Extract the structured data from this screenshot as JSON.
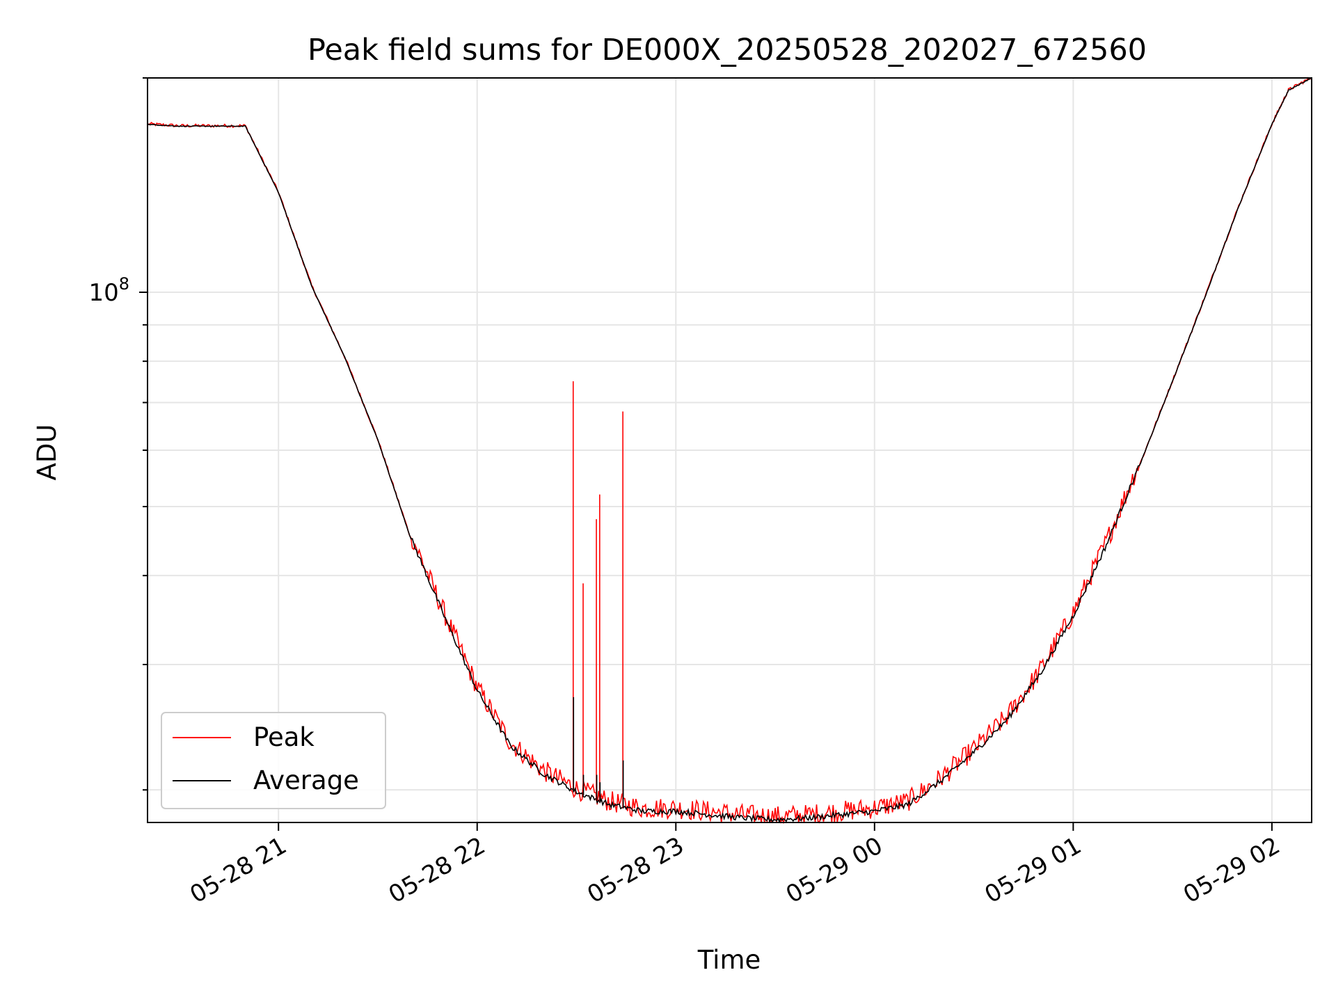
{
  "chart_data": {
    "type": "line",
    "title": "Peak field sums for DE000X_20250528_202027_672560",
    "xlabel": "Time",
    "ylabel": "ADU",
    "xlim": [
      "2025-05-28 20:20:27",
      "2025-05-29 02:12:00"
    ],
    "ylim": [
      18000000,
      200000000
    ],
    "yscale": "log",
    "grid": true,
    "legend_position": "lower-left",
    "x_ticks": [
      {
        "value": "2025-05-28 21:00",
        "label": "05-28 21"
      },
      {
        "value": "2025-05-28 22:00",
        "label": "05-28 22"
      },
      {
        "value": "2025-05-28 23:00",
        "label": "05-28 23"
      },
      {
        "value": "2025-05-29 00:00",
        "label": "05-29 00"
      },
      {
        "value": "2025-05-29 01:00",
        "label": "05-29 01"
      },
      {
        "value": "2025-05-29 02:00",
        "label": "05-29 02"
      }
    ],
    "y_major_tick": {
      "value": 100000000,
      "label_base": "10",
      "label_exp": "8"
    },
    "y_minor_ticks": [
      20000000,
      30000000,
      40000000,
      50000000,
      60000000,
      70000000,
      80000000,
      90000000,
      200000000
    ],
    "series": [
      {
        "name": "Peak",
        "color": "#ff0000",
        "x": [
          "2025-05-28 20:20:27",
          "2025-05-28 20:30",
          "2025-05-28 20:40",
          "2025-05-28 20:50",
          "2025-05-28 21:00",
          "2025-05-28 21:10",
          "2025-05-28 21:20",
          "2025-05-28 21:30",
          "2025-05-28 21:40",
          "2025-05-28 21:50",
          "2025-05-28 22:00",
          "2025-05-28 22:10",
          "2025-05-28 22:20",
          "2025-05-28 22:30",
          "2025-05-28 22:40",
          "2025-05-28 22:50",
          "2025-05-28 23:00",
          "2025-05-28 23:10",
          "2025-05-28 23:20",
          "2025-05-28 23:30",
          "2025-05-28 23:40",
          "2025-05-28 23:50",
          "2025-05-29 00:00",
          "2025-05-29 00:10",
          "2025-05-29 00:20",
          "2025-05-29 00:30",
          "2025-05-29 00:40",
          "2025-05-29 00:50",
          "2025-05-29 01:00",
          "2025-05-29 01:10",
          "2025-05-29 01:20",
          "2025-05-29 01:30",
          "2025-05-29 01:40",
          "2025-05-29 01:50",
          "2025-05-29 02:00",
          "2025-05-29 02:05",
          "2025-05-29 02:12"
        ],
        "values": [
          172000000,
          171000000,
          171000000,
          171000000,
          138000000,
          102000000,
          81000000,
          62000000,
          45000000,
          35000000,
          27500000,
          23000000,
          21000000,
          19800000,
          19000000,
          18600000,
          18600000,
          18400000,
          18200000,
          18100000,
          18200000,
          18400000,
          18600000,
          19000000,
          20500000,
          22500000,
          25000000,
          29000000,
          35000000,
          44000000,
          57000000,
          75000000,
          99000000,
          132000000,
          172000000,
          192000000,
          200000000
        ]
      },
      {
        "name": "Average",
        "color": "#000000",
        "x": [
          "2025-05-28 20:20:27",
          "2025-05-28 20:30",
          "2025-05-28 20:40",
          "2025-05-28 20:50",
          "2025-05-28 21:00",
          "2025-05-28 21:10",
          "2025-05-28 21:20",
          "2025-05-28 21:30",
          "2025-05-28 21:40",
          "2025-05-28 21:50",
          "2025-05-28 22:00",
          "2025-05-28 22:10",
          "2025-05-28 22:20",
          "2025-05-28 22:30",
          "2025-05-28 22:40",
          "2025-05-28 22:50",
          "2025-05-28 23:00",
          "2025-05-28 23:10",
          "2025-05-28 23:20",
          "2025-05-28 23:30",
          "2025-05-28 23:40",
          "2025-05-28 23:50",
          "2025-05-29 00:00",
          "2025-05-29 00:10",
          "2025-05-29 00:20",
          "2025-05-29 00:30",
          "2025-05-29 00:40",
          "2025-05-29 00:50",
          "2025-05-29 01:00",
          "2025-05-29 01:10",
          "2025-05-29 01:20",
          "2025-05-29 01:30",
          "2025-05-29 01:40",
          "2025-05-29 01:50",
          "2025-05-29 02:00",
          "2025-05-29 02:05",
          "2025-05-29 02:12"
        ],
        "values": [
          172000000,
          171000000,
          171000000,
          171000000,
          138000000,
          102000000,
          81000000,
          62000000,
          45000000,
          35000000,
          27500000,
          23000000,
          21000000,
          19800000,
          19000000,
          18600000,
          18600000,
          18400000,
          18200000,
          18100000,
          18200000,
          18400000,
          18600000,
          19000000,
          20500000,
          22500000,
          25000000,
          29000000,
          35000000,
          44000000,
          57000000,
          75000000,
          99000000,
          132000000,
          172000000,
          192000000,
          200000000
        ]
      }
    ],
    "spikes": [
      {
        "x": "2025-05-28 22:29",
        "peak": 75000000,
        "average": 27000000
      },
      {
        "x": "2025-05-28 22:32",
        "peak": 39000000,
        "average": 21000000
      },
      {
        "x": "2025-05-28 22:36",
        "peak": 48000000,
        "average": 21000000
      },
      {
        "x": "2025-05-28 22:37",
        "peak": 52000000,
        "average": 20500000
      },
      {
        "x": "2025-05-28 22:44",
        "peak": 68000000,
        "average": 22000000
      }
    ]
  }
}
